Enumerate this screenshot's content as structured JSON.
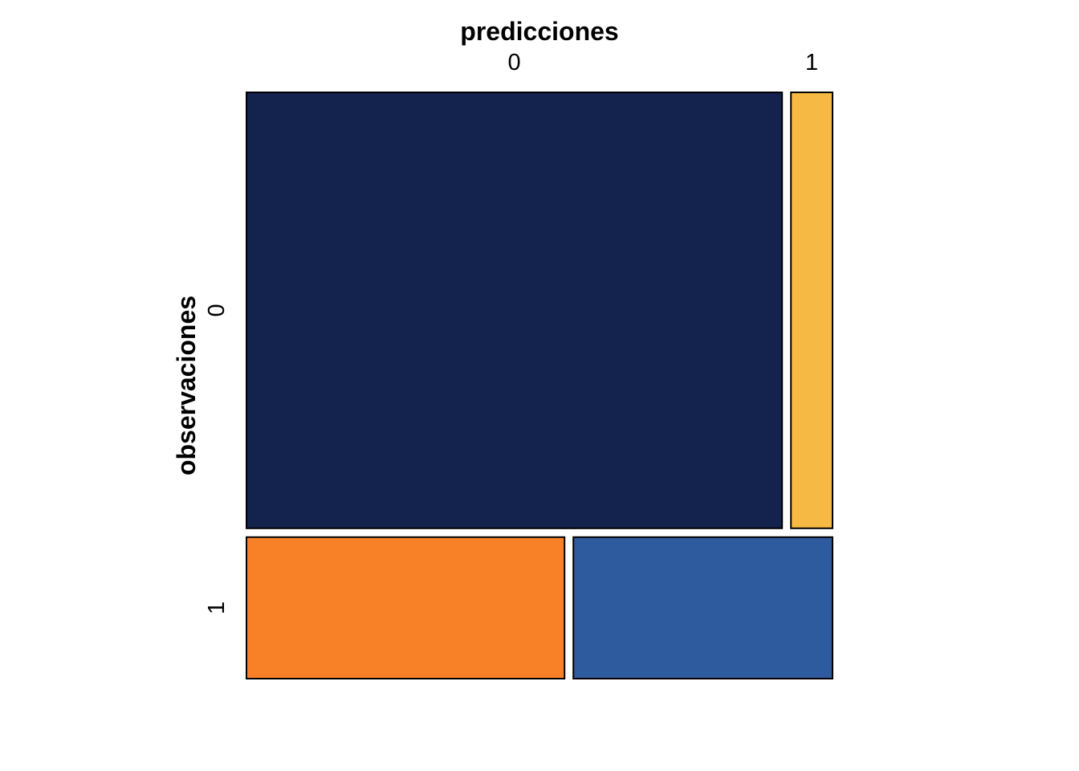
{
  "chart_data": {
    "type": "mosaic",
    "xlabel": "predicciones",
    "ylabel": "observaciones",
    "x_categories": [
      "0",
      "1"
    ],
    "y_categories": [
      "0",
      "1"
    ],
    "row_shares": {
      "0": 0.755,
      "1": 0.245
    },
    "cells": [
      {
        "observed": "0",
        "predicted": "0",
        "share_within_observed": 0.928,
        "color": "#13234E"
      },
      {
        "observed": "0",
        "predicted": "1",
        "share_within_observed": 0.072,
        "color": "#F6B943"
      },
      {
        "observed": "1",
        "predicted": "0",
        "share_within_observed": 0.551,
        "color": "#F88128"
      },
      {
        "observed": "1",
        "predicted": "1",
        "share_within_observed": 0.449,
        "color": "#2E5A9E"
      }
    ]
  }
}
